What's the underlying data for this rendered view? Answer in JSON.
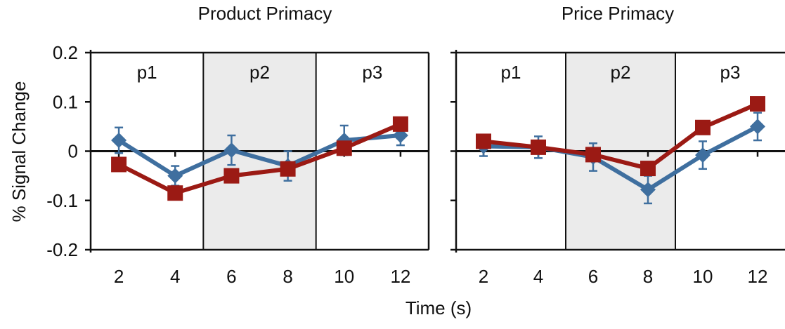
{
  "colors": {
    "background": "#ffffff",
    "shade": "#ebebeb",
    "series_blue": "#3f6f9f",
    "series_red": "#9b1a14",
    "axis": "#111111"
  },
  "chart_data": [
    {
      "type": "line",
      "title": "Product Primacy",
      "xlabel": "Time (s)",
      "ylabel": "% Signal Change",
      "x": [
        2,
        4,
        6,
        8,
        10,
        12
      ],
      "ylim": [
        -0.2,
        0.2
      ],
      "yticks": [
        "0.2",
        "0.1",
        "0",
        "-0.1",
        "-0.2"
      ],
      "xticks": [
        "2",
        "4",
        "6",
        "8",
        "10",
        "12"
      ],
      "periods": [
        {
          "label": "p1",
          "shaded": false
        },
        {
          "label": "p2",
          "shaded": true
        },
        {
          "label": "p3",
          "shaded": false
        }
      ],
      "series": [
        {
          "color": "#3f6f9f",
          "marker": "diamond",
          "values": [
            0.022,
            -0.05,
            0.002,
            -0.03,
            0.022,
            0.032
          ],
          "errors": [
            0.026,
            0.02,
            0.03,
            0.03,
            0.03,
            0.02
          ]
        },
        {
          "color": "#9b1a14",
          "marker": "square",
          "values": [
            -0.027,
            -0.085,
            -0.05,
            -0.036,
            0.006,
            0.055
          ],
          "errors": [
            0,
            0,
            0,
            0,
            0,
            0
          ]
        }
      ]
    },
    {
      "type": "line",
      "title": "Price Primacy",
      "xlabel": "Time (s)",
      "ylabel": "",
      "x": [
        2,
        4,
        6,
        8,
        10,
        12
      ],
      "ylim": [
        -0.2,
        0.2
      ],
      "yticks": [],
      "xticks": [
        "2",
        "4",
        "6",
        "8",
        "10",
        "12"
      ],
      "periods": [
        {
          "label": "p1",
          "shaded": false
        },
        {
          "label": "p2",
          "shaded": true
        },
        {
          "label": "p3",
          "shaded": false
        }
      ],
      "series": [
        {
          "color": "#3f6f9f",
          "marker": "diamond",
          "values": [
            0.01,
            0.008,
            -0.012,
            -0.078,
            -0.008,
            0.05
          ],
          "errors": [
            0.02,
            0.022,
            0.028,
            0.028,
            0.028,
            0.028
          ]
        },
        {
          "color": "#9b1a14",
          "marker": "square",
          "values": [
            0.02,
            0.008,
            -0.007,
            -0.035,
            0.048,
            0.096
          ],
          "errors": [
            0,
            0,
            0,
            0,
            0,
            0
          ]
        }
      ]
    }
  ]
}
